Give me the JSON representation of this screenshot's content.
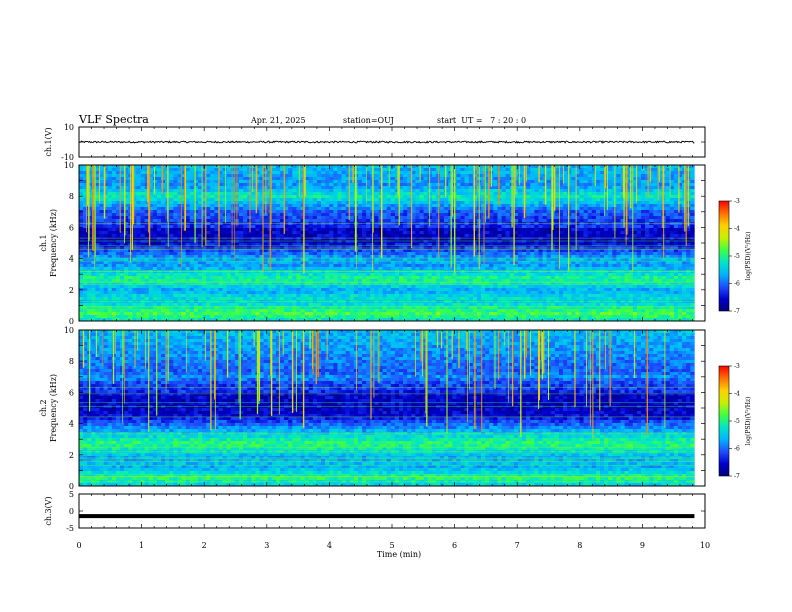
{
  "header": {
    "title": "VLF Spectra",
    "date": "Apr. 21, 2025",
    "station": "station=OUJ",
    "start_ut": "start  UT =   7 : 20 : 0"
  },
  "colors": {
    "colormap": [
      "#00007a",
      "#0000d0",
      "#1e50ff",
      "#00b4ff",
      "#00e6c8",
      "#40ff40",
      "#c8f000",
      "#ffd000",
      "#ff7000",
      "#ff0000",
      "#ffffff"
    ]
  },
  "chart_data": [
    {
      "type": "line",
      "name": "ch1_waveform",
      "ylabel": "ch.1(V)",
      "ylim": [
        -10,
        10
      ],
      "yticks": [
        "10",
        "-10"
      ],
      "series": [
        {
          "values_description": "noisy waveform",
          "mean": 0,
          "amplitude": 0.6
        }
      ]
    },
    {
      "type": "heatmap",
      "name": "ch1_spectrogram",
      "ylabel": "ch.1\nFrequency (kHz)",
      "ylabel_line1": "ch.1",
      "ylabel_line2": "Frequency (kHz)",
      "ylim": [
        0,
        10
      ],
      "yticks": [
        "0",
        "2",
        "4",
        "6",
        "8",
        "10"
      ],
      "xlim": [
        0,
        9.83
      ],
      "colorbar": {
        "label": "log(PSD)(V²/Hz)",
        "range": [
          -7,
          -3
        ],
        "ticks": [
          "-3",
          "-4",
          "-5",
          "-6",
          "-7"
        ]
      },
      "bands": [
        {
          "freq_kHz": 0.5,
          "level": -4.8
        },
        {
          "freq_kHz": 1.5,
          "level": -5.3
        },
        {
          "freq_kHz": 2.7,
          "level": -5.0
        },
        {
          "freq_kHz": 3.9,
          "level": -5.6
        },
        {
          "freq_kHz": 8.0,
          "level": -5.2
        }
      ]
    },
    {
      "type": "heatmap",
      "name": "ch2_spectrogram",
      "ylabel": "ch.2\nFrequency (kHz)",
      "ylabel_line1": "ch.2",
      "ylabel_line2": "Frequency (kHz)",
      "ylim": [
        0,
        10
      ],
      "yticks": [
        "0",
        "2",
        "4",
        "6",
        "8",
        "10"
      ],
      "xlim": [
        0,
        9.83
      ],
      "colorbar": {
        "label": "log(PSD)(V²/Hz)",
        "range": [
          -7,
          -3
        ],
        "ticks": [
          "-3",
          "-4",
          "-5",
          "-6",
          "-7"
        ]
      },
      "bands": [
        {
          "freq_kHz": 0.5,
          "level": -5.0
        },
        {
          "freq_kHz": 1.5,
          "level": -5.5
        },
        {
          "freq_kHz": 2.7,
          "level": -4.9
        },
        {
          "freq_kHz": 7.0,
          "level": -5.8
        }
      ]
    },
    {
      "type": "line",
      "name": "ch3_waveform",
      "ylabel": "ch.3(V)",
      "ylim": [
        -5,
        5
      ],
      "yticks": [
        "5",
        "0",
        "-5"
      ],
      "series": [
        {
          "values_description": "flat trace",
          "mean": -1.5
        }
      ]
    }
  ],
  "xaxis": {
    "label": "Time (min)",
    "range": [
      0,
      10
    ],
    "ticks": [
      "0",
      "1",
      "2",
      "3",
      "4",
      "5",
      "6",
      "7",
      "8",
      "9",
      "10"
    ]
  }
}
